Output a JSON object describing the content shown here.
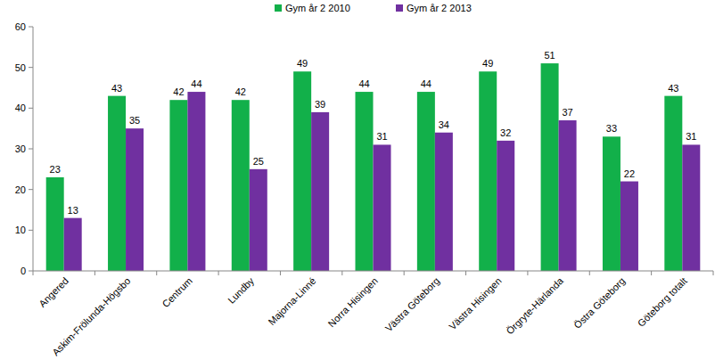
{
  "chart_data": {
    "type": "bar",
    "categories": [
      "Angered",
      "Askim-Frölunda-Högsbo",
      "Centrum",
      "Lundby",
      "Majorna-Linné",
      "Norra Hisingen",
      "Västra Göteborg",
      "Västra Hisingen",
      "Örgryte-Härlanda",
      "Östra Göteborg",
      "Göteborg totalt"
    ],
    "series": [
      {
        "name": "Gym år 2 2010",
        "color": "#12b04a",
        "values": [
          23,
          43,
          42,
          42,
          49,
          44,
          44,
          49,
          51,
          33,
          43
        ]
      },
      {
        "name": "Gym år 2 2013",
        "color": "#7030a0",
        "values": [
          13,
          35,
          44,
          25,
          39,
          31,
          34,
          32,
          37,
          22,
          31
        ]
      }
    ],
    "ylim": [
      0,
      60
    ],
    "yticks": [
      0,
      10,
      20,
      30,
      40,
      50,
      60
    ],
    "grid": false,
    "legend": "top",
    "data_labels": true
  }
}
